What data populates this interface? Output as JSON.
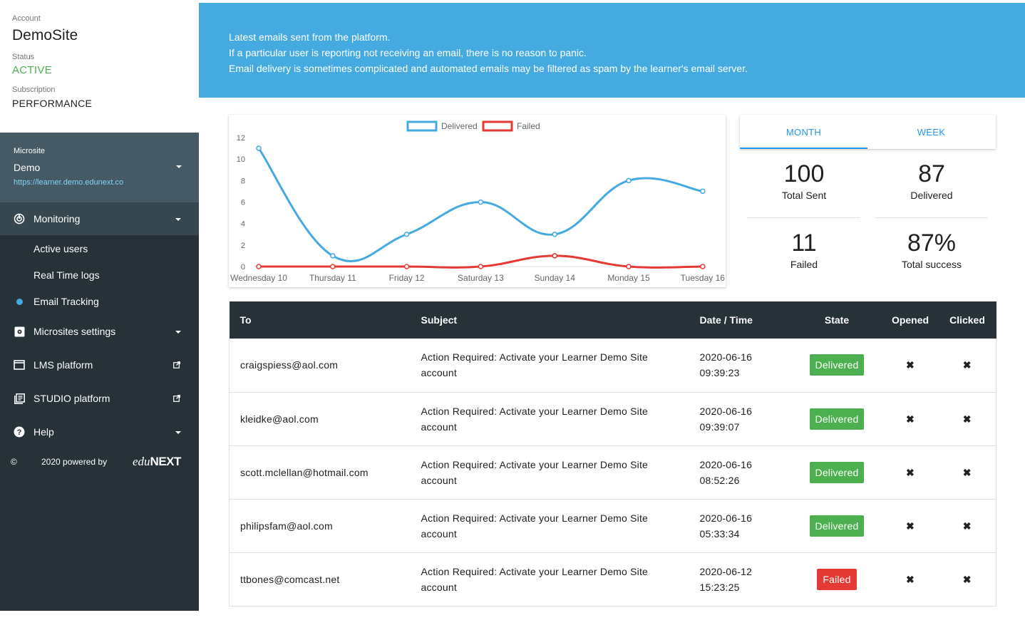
{
  "sidebar": {
    "account_label": "Account",
    "account_name": "DemoSite",
    "status_label": "Status",
    "status_value": "ACTIVE",
    "subscription_label": "Subscription",
    "subscription_value": "PERFORMANCE",
    "microsite_label": "Microsite",
    "microsite_name": "Demo",
    "microsite_url": "https://learner.demo.edunext.co",
    "nav": {
      "monitoring": "Monitoring",
      "active_users": "Active users",
      "real_time_logs": "Real Time logs",
      "email_tracking": "Email Tracking",
      "microsites_settings": "Microsites settings",
      "lms_platform": "LMS platform",
      "studio_platform": "STUDIO platform",
      "help": "Help"
    },
    "footer": {
      "copyright": "©",
      "text": "2020 powered by",
      "brand_prefix": "edu",
      "brand_suffix": "NEXT"
    }
  },
  "banner": {
    "line1": "Latest emails sent from the platform.",
    "line2": "If a particular user is reporting not receiving an email, there is no reason to panic.",
    "line3": "Email delivery is sometimes complicated and automated emails may be filtered as spam by the learner's email server."
  },
  "chart_data": {
    "type": "line",
    "categories": [
      "Wednesday 10",
      "Thursday 11",
      "Friday 12",
      "Saturday 13",
      "Sunday 14",
      "Monday 15",
      "Tuesday 16"
    ],
    "series": [
      {
        "name": "Delivered",
        "color": "#45aae0",
        "values": [
          11,
          1,
          3,
          6,
          3,
          8,
          7
        ]
      },
      {
        "name": "Failed",
        "color": "#e53935",
        "values": [
          0,
          0,
          0,
          0,
          1,
          0,
          0
        ]
      }
    ],
    "ylim": [
      0,
      12
    ],
    "yticks": [
      0,
      2,
      4,
      6,
      8,
      10,
      12
    ],
    "legend": "top-center",
    "grid": false
  },
  "stats": {
    "tab_month": "MONTH",
    "tab_week": "WEEK",
    "total_sent_value": "100",
    "total_sent_label": "Total Sent",
    "delivered_value": "87",
    "delivered_label": "Delivered",
    "failed_value": "11",
    "failed_label": "Failed",
    "success_value": "87%",
    "success_label": "Total success"
  },
  "table": {
    "headers": {
      "to": "To",
      "subject": "Subject",
      "datetime": "Date / Time",
      "state": "State",
      "opened": "Opened",
      "clicked": "Clicked"
    },
    "rows": [
      {
        "to": "craigspiess@aol.com",
        "subject": "Action Required: Activate your Learner Demo Site account",
        "date": "2020-06-16",
        "time": "09:39:23",
        "state": "Delivered",
        "state_color": "#4caf50",
        "opened": "✖",
        "clicked": "✖"
      },
      {
        "to": "kleidke@aol.com",
        "subject": "Action Required: Activate your Learner Demo Site account",
        "date": "2020-06-16",
        "time": "09:39:07",
        "state": "Delivered",
        "state_color": "#4caf50",
        "opened": "✖",
        "clicked": "✖"
      },
      {
        "to": "scott.mclellan@hotmail.com",
        "subject": "Action Required: Activate your Learner Demo Site account",
        "date": "2020-06-16",
        "time": "08:52:26",
        "state": "Delivered",
        "state_color": "#4caf50",
        "opened": "✖",
        "clicked": "✖"
      },
      {
        "to": "philipsfam@aol.com",
        "subject": "Action Required: Activate your Learner Demo Site account",
        "date": "2020-06-16",
        "time": "05:33:34",
        "state": "Delivered",
        "state_color": "#4caf50",
        "opened": "✖",
        "clicked": "✖"
      },
      {
        "to": "ttbones@comcast.net",
        "subject": "Action Required: Activate your Learner Demo Site account",
        "date": "2020-06-12",
        "time": "15:23:25",
        "state": "Failed",
        "state_color": "#e53935",
        "opened": "✖",
        "clicked": "✖"
      }
    ]
  },
  "colors": {
    "accent": "#45aae0",
    "sidebar_dark": "#263238",
    "sidebar_mid": "#455a64",
    "success": "#4caf50",
    "danger": "#e53935",
    "tab_blue": "#2196f3"
  }
}
